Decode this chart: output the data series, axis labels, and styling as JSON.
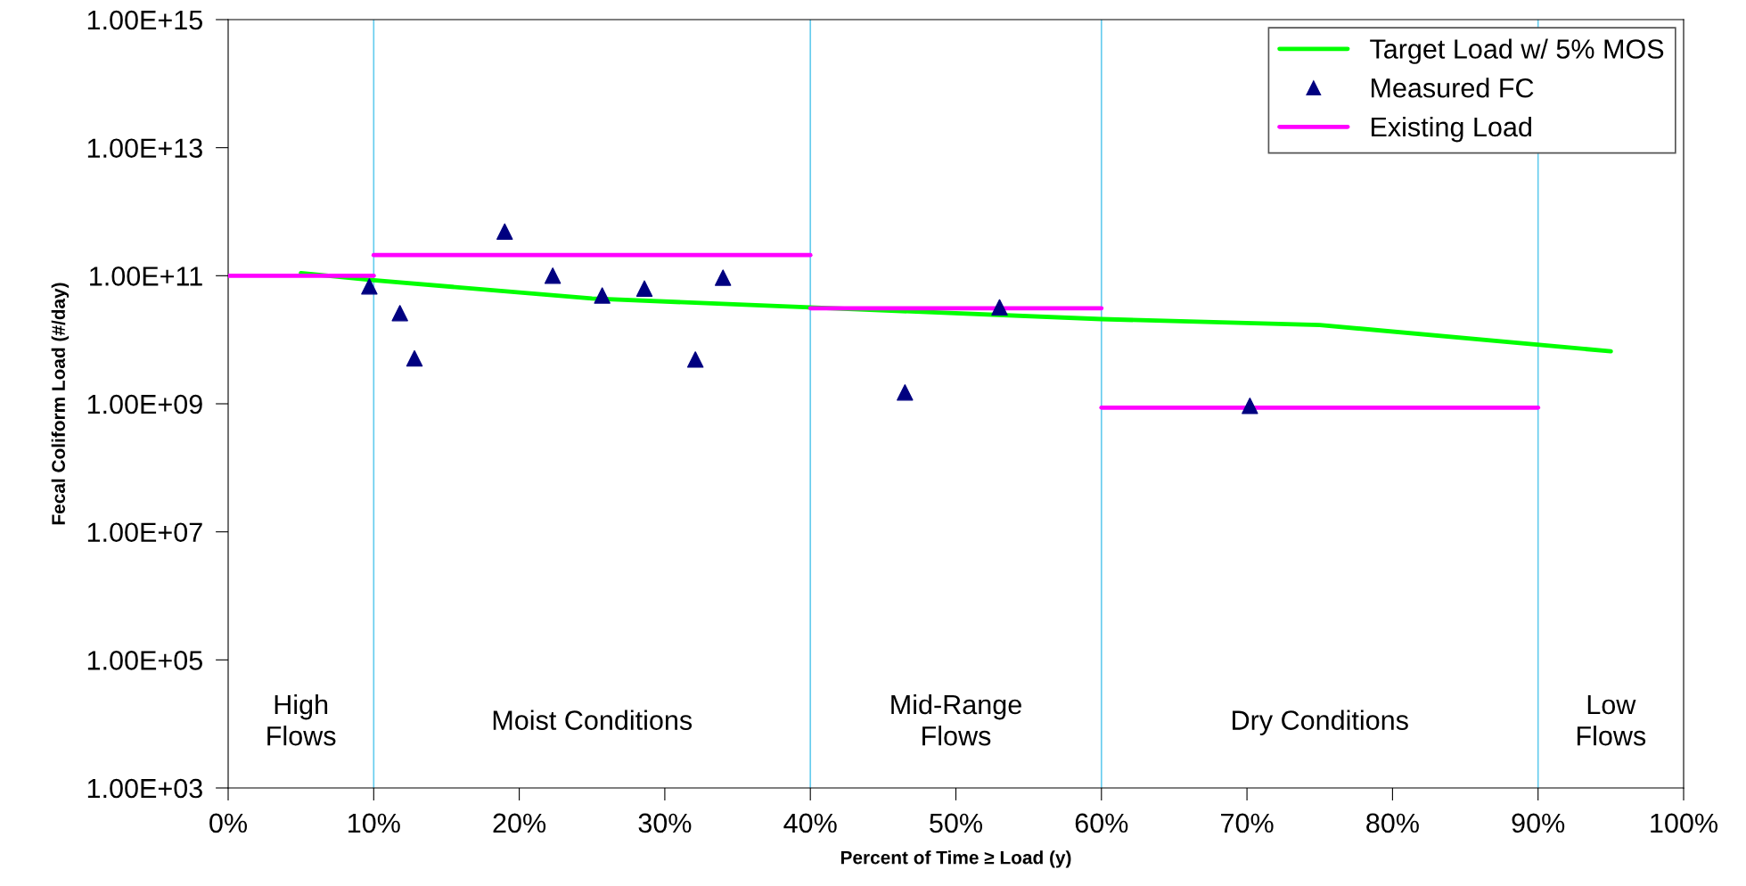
{
  "chart_data": {
    "type": "line",
    "xlabel": "Percent of Time ≥ Load (y)",
    "ylabel": "Fecal Coliform Load (#/day)",
    "log": "y",
    "grid": false,
    "legend": "top right",
    "xlim": [
      0,
      100
    ],
    "xticks": [
      {
        "value": 0,
        "label": "0%"
      },
      {
        "value": 10,
        "label": "10%"
      },
      {
        "value": 20,
        "label": "20%"
      },
      {
        "value": 30,
        "label": "30%"
      },
      {
        "value": 40,
        "label": "40%"
      },
      {
        "value": 50,
        "label": "50%"
      },
      {
        "value": 60,
        "label": "60%"
      },
      {
        "value": 70,
        "label": "70%"
      },
      {
        "value": 80,
        "label": "80%"
      },
      {
        "value": 90,
        "label": "90%"
      },
      {
        "value": 100,
        "label": "100%"
      }
    ],
    "ylim": [
      1000.0,
      1000000000000000.0
    ],
    "yticks": [
      {
        "value": 1000.0,
        "label": "1.00E+03"
      },
      {
        "value": 100000.0,
        "label": "1.00E+05"
      },
      {
        "value": 10000000.0,
        "label": "1.00E+07"
      },
      {
        "value": 1000000000.0,
        "label": "1.00E+09"
      },
      {
        "value": 100000000000.0,
        "label": "1.00E+11"
      },
      {
        "value": 10000000000000.0,
        "label": "1.00E+13"
      },
      {
        "value": 1000000000000000.0,
        "label": "1.00E+15"
      }
    ],
    "series": [
      {
        "name": "Target Load w/ 5% MOS",
        "color": "#00ff00",
        "marker": "none",
        "line_style": "solid",
        "x": [
          5,
          10,
          25,
          40,
          60,
          75,
          95
        ],
        "values": [
          110000000000.0,
          85000000000.0,
          44000000000.0,
          32000000000.0,
          21000000000.0,
          17000000000.0,
          6600000000.0
        ]
      },
      {
        "name": "Measured FC",
        "type": "scatter",
        "color": "#000080",
        "marker": "triangle",
        "x": [
          9.7,
          11.8,
          12.8,
          19.0,
          22.3,
          25.7,
          28.6,
          32.1,
          34.0,
          46.5,
          53.0,
          70.2
        ],
        "values": [
          68000000000.0,
          26000000000.0,
          5100000000.0,
          490000000000.0,
          100000000000.0,
          49000000000.0,
          63000000000.0,
          4900000000.0,
          93000000000.0,
          1500000000.0,
          32000000000.0,
          930000000.0
        ]
      },
      {
        "name": "Existing Load",
        "color": "#ff00ff",
        "marker": "none",
        "line_style": "solid",
        "x": [
          0,
          10
        ],
        "values": [
          100000000000.0,
          100000000000.0
        ]
      },
      {
        "color": "#ff00ff",
        "marker": "none",
        "line_style": "solid",
        "x": [
          10,
          40
        ],
        "values": [
          210000000000.0,
          210000000000.0
        ]
      },
      {
        "color": "#ff00ff",
        "marker": "none",
        "line_style": "solid",
        "x": [
          40,
          60
        ],
        "values": [
          31000000000.0,
          31000000000.0
        ]
      },
      {
        "color": "#ff00ff",
        "marker": "none",
        "line_style": "solid",
        "x": [
          60,
          90
        ],
        "values": [
          870000000.0,
          870000000.0
        ]
      }
    ],
    "ref_lines": [
      {
        "axis": "x",
        "value": 10,
        "color": "#66ccee"
      },
      {
        "axis": "x",
        "value": 40,
        "color": "#66ccee"
      },
      {
        "axis": "x",
        "value": 60,
        "color": "#66ccee"
      },
      {
        "axis": "x",
        "value": 90,
        "color": "#66ccee"
      }
    ],
    "annotations": [
      "High\nFlows",
      "Moist Conditions",
      "Mid-Range\nFlows",
      "Dry Conditions",
      "Low\nFlows"
    ]
  }
}
